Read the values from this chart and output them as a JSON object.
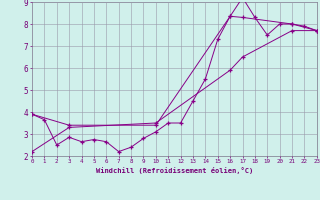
{
  "background_color": "#d0f0eb",
  "grid_color": "#9999aa",
  "line_color": "#880088",
  "marker": "+",
  "xlabel": "Windchill (Refroidissement éolien,°C)",
  "xlim": [
    0,
    23
  ],
  "ylim": [
    2,
    9
  ],
  "yticks": [
    2,
    3,
    4,
    5,
    6,
    7,
    8,
    9
  ],
  "xticks": [
    0,
    1,
    2,
    3,
    4,
    5,
    6,
    7,
    8,
    9,
    10,
    11,
    12,
    13,
    14,
    15,
    16,
    17,
    18,
    19,
    20,
    21,
    22,
    23
  ],
  "series1_x": [
    0,
    1,
    2,
    3,
    4,
    5,
    6,
    7,
    8,
    9,
    10,
    11,
    12,
    13,
    14,
    15,
    16,
    17,
    18,
    19,
    20,
    21,
    22,
    23
  ],
  "series1_y": [
    3.9,
    3.65,
    2.5,
    2.85,
    2.65,
    2.75,
    2.65,
    2.2,
    2.4,
    2.8,
    3.1,
    3.5,
    3.5,
    4.5,
    5.5,
    7.3,
    8.35,
    9.2,
    8.3,
    7.5,
    8.0,
    8.0,
    7.9,
    7.7
  ],
  "series2_x": [
    0,
    3,
    10,
    16,
    17,
    21,
    23
  ],
  "series2_y": [
    3.9,
    3.4,
    3.4,
    8.35,
    8.3,
    8.0,
    7.7
  ],
  "series3_x": [
    0,
    3,
    10,
    16,
    17,
    21,
    23
  ],
  "series3_y": [
    2.2,
    3.3,
    3.5,
    5.9,
    6.5,
    7.7,
    7.7
  ]
}
